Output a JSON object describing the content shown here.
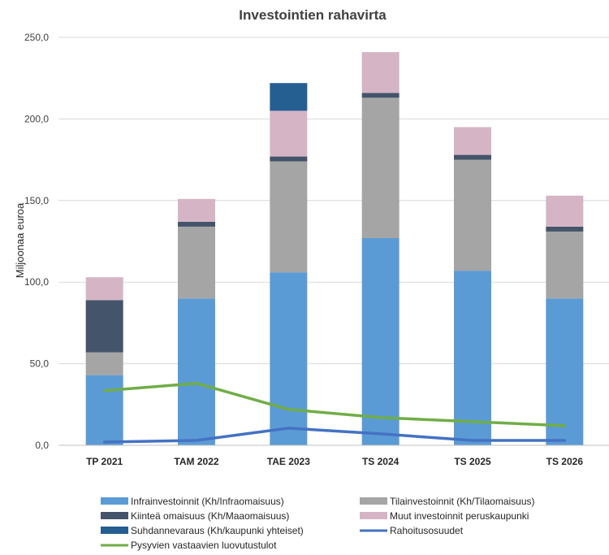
{
  "chart_data": {
    "type": "bar",
    "stacked": true,
    "title": "Investointien rahavirta",
    "ylabel": "Miljoonaa euroa",
    "xlabel": "",
    "ylim": [
      0,
      250
    ],
    "yticks": [
      "0,0",
      "50,0",
      "100,0",
      "150,0",
      "200,0",
      "250,0"
    ],
    "ytick_values": [
      0,
      50,
      100,
      150,
      200,
      250
    ],
    "grid": true,
    "legend_position": "bottom",
    "categories": [
      "TP 2021",
      "TAM 2022",
      "TAE 2023",
      "TS 2024",
      "TS 2025",
      "TS 2026"
    ],
    "series": [
      {
        "name": "Infrainvestoinnit (Kh/Infraomaisuus)",
        "kind": "bar",
        "color": "#5b9bd5",
        "values": [
          43,
          90,
          106,
          127,
          107,
          90
        ]
      },
      {
        "name": "Tilainvestoinnit (Kh/Tilaomaisuus)",
        "kind": "bar",
        "color": "#a5a5a5",
        "values": [
          14,
          44,
          68,
          86,
          68,
          41
        ]
      },
      {
        "name": "Kiinteä omaisuus (Kh/Maaomaisuus)",
        "kind": "bar",
        "color": "#44546a",
        "values": [
          32,
          3,
          3,
          3,
          3,
          3
        ]
      },
      {
        "name": "Muut investoinnit peruskaupunki",
        "kind": "bar",
        "color": "#d5b5c5",
        "values": [
          14,
          14,
          28,
          25,
          17,
          19
        ]
      },
      {
        "name": "Suhdannevaraus (Kh/kaupunki yhteiset)",
        "kind": "bar",
        "color": "#255e91",
        "values": [
          0,
          0,
          17,
          0,
          0,
          0
        ]
      },
      {
        "name": "Rahoitusosuudet",
        "kind": "line",
        "color": "#4472c4",
        "values": [
          2,
          3,
          10.5,
          7,
          3,
          3
        ]
      },
      {
        "name": "Pysyvien vastaavien luovutustulot",
        "kind": "line",
        "color": "#70ad47",
        "values": [
          33.5,
          38,
          22,
          17,
          14.5,
          12
        ]
      }
    ]
  }
}
